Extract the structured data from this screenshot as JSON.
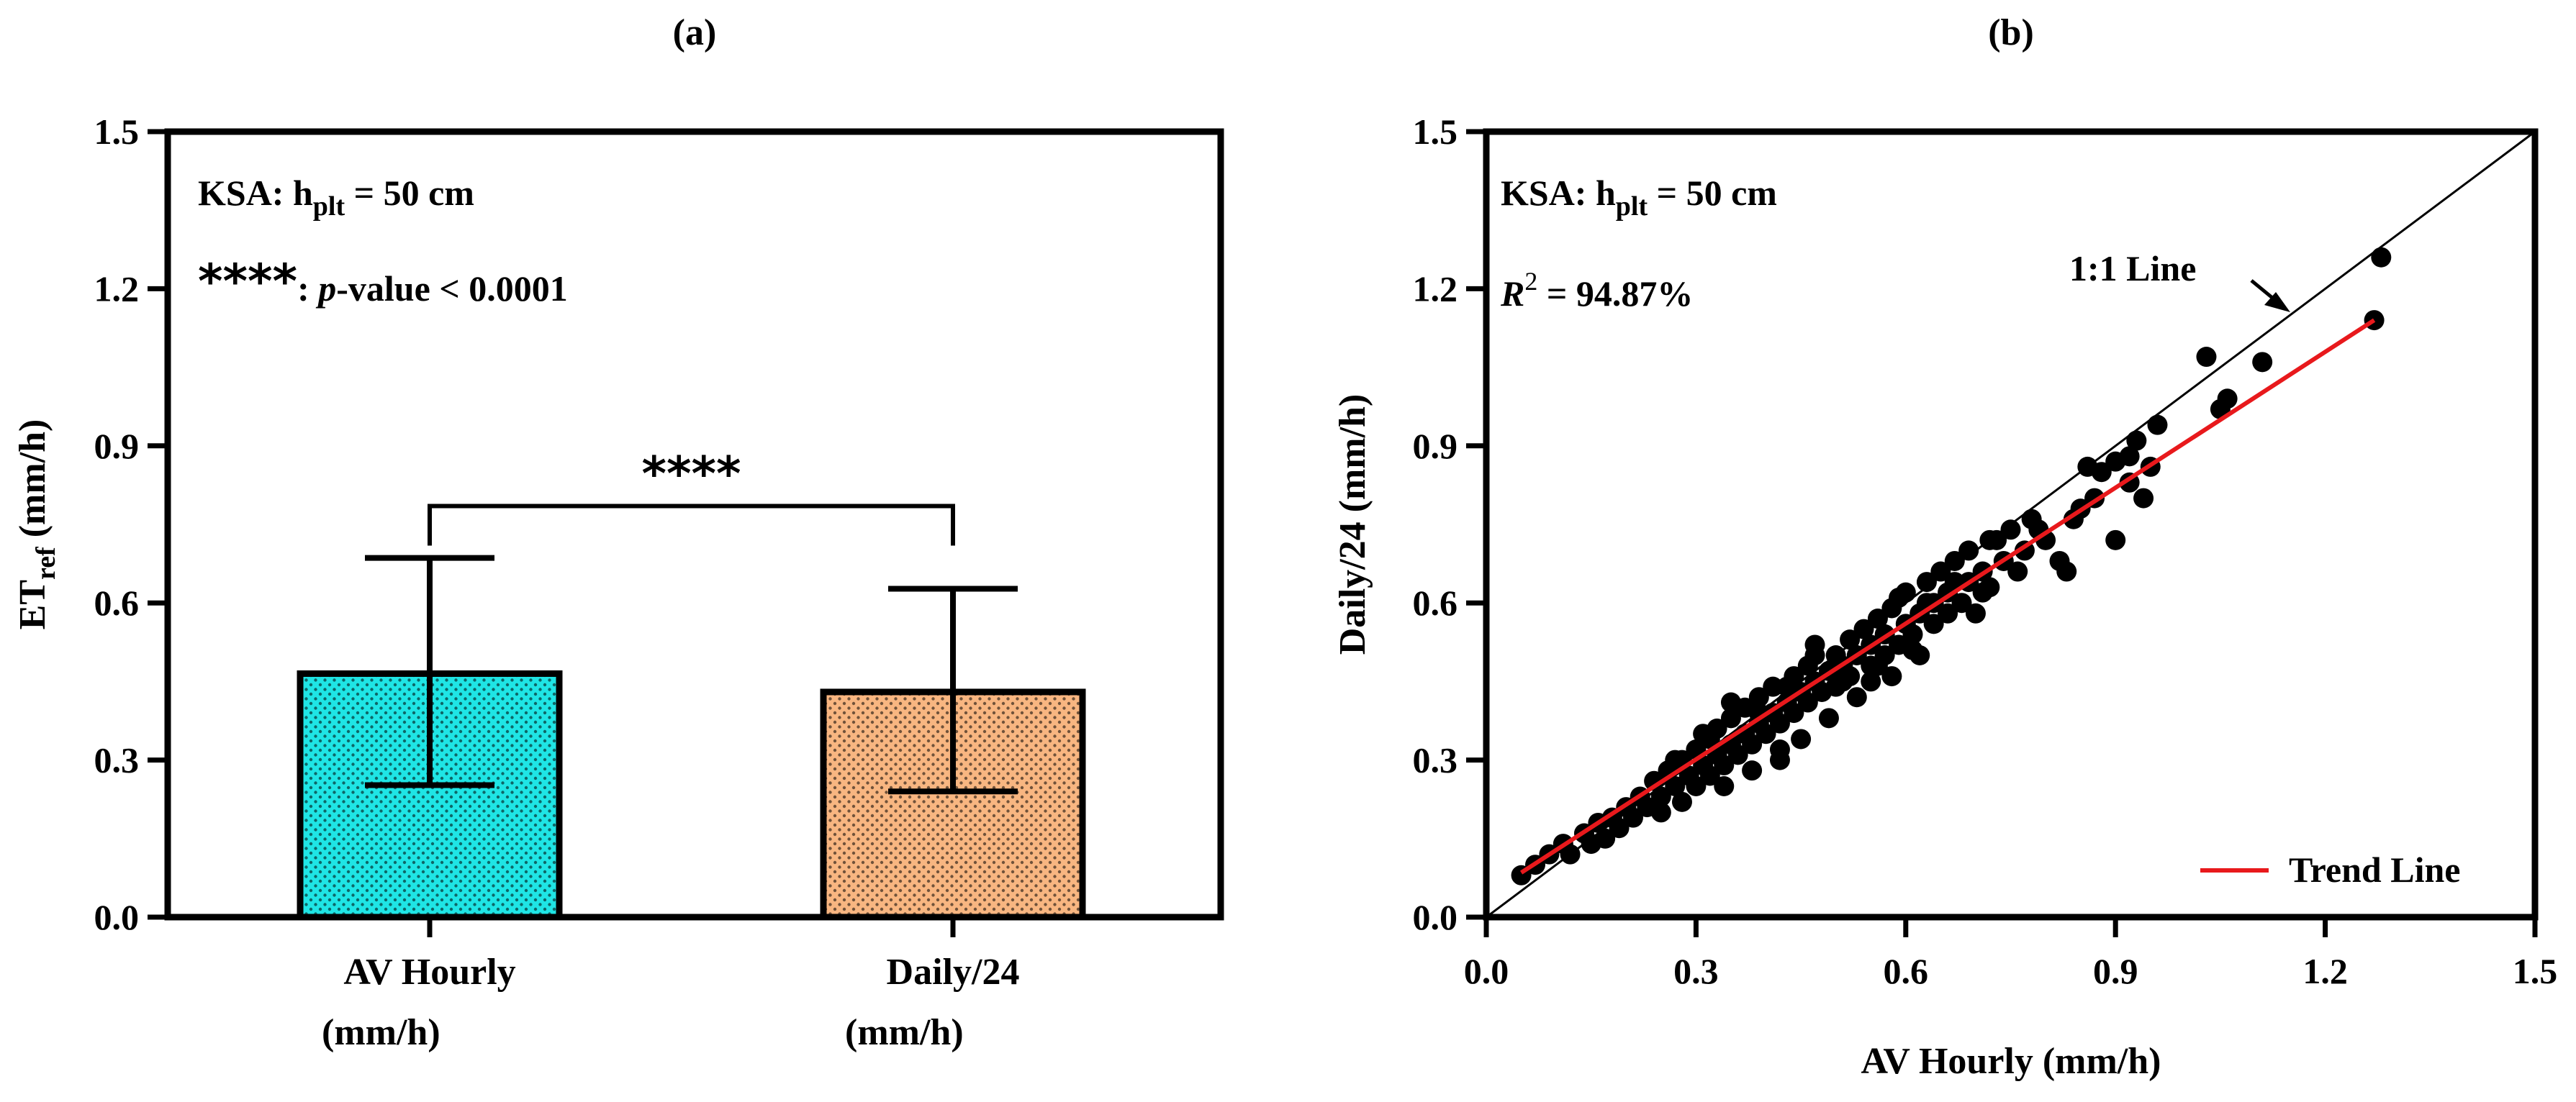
{
  "chart_data": [
    {
      "panel_label": "(a)",
      "type": "bar",
      "categories": [
        {
          "line1": "AV Hourly",
          "line2": "(mm/h)"
        },
        {
          "line1": "Daily/24",
          "line2": "(mm/h)"
        }
      ],
      "values": [
        0.465,
        0.43
      ],
      "error_lower": [
        0.252,
        0.24
      ],
      "error_upper": [
        0.686,
        0.627
      ],
      "bar_colors": [
        "#1FE5E5",
        "#F8B681"
      ],
      "ylabel": {
        "main": "ET",
        "sub": "ref",
        "unit": " (mm/h)"
      },
      "ylim": [
        0,
        1.5
      ],
      "yticks": [
        0.0,
        0.3,
        0.6,
        0.9,
        1.2,
        1.5
      ],
      "ytick_labels": [
        "0.0",
        "0.3",
        "0.6",
        "0.9",
        "1.2",
        "1.5"
      ],
      "annotation_site": {
        "prefix": "KSA: h",
        "sub": "plt",
        "suffix": " = 50 cm"
      },
      "annotation_pvalue": {
        "stars": "****",
        "colon": ": ",
        "p": "p",
        "rest": "-value < 0.0001"
      },
      "significance": {
        "between": [
          0,
          1
        ],
        "label": "****",
        "y": 0.785
      }
    },
    {
      "panel_label": "(b)",
      "type": "scatter",
      "xlabel": "AV Hourly (mm/h)",
      "ylabel": "Daily/24 (mm/h)",
      "xlim": [
        0,
        1.5
      ],
      "ylim": [
        0,
        1.5
      ],
      "xticks": [
        0.0,
        0.3,
        0.6,
        0.9,
        1.2,
        1.5
      ],
      "xtick_labels": [
        "0.0",
        "0.3",
        "0.6",
        "0.9",
        "1.2",
        "1.5"
      ],
      "yticks": [
        0.0,
        0.3,
        0.6,
        0.9,
        1.2,
        1.5
      ],
      "ytick_labels": [
        "0.0",
        "0.3",
        "0.6",
        "0.9",
        "1.2",
        "1.5"
      ],
      "annotation_site": {
        "prefix": "KSA: h",
        "sub": "plt",
        "suffix": " = 50 cm"
      },
      "annotation_r2": {
        "r": "R",
        "sup": "2",
        "rest": " = 94.87%"
      },
      "identity_line": {
        "label": "1:1 Line",
        "from": [
          0,
          0
        ],
        "to": [
          1.5,
          1.5
        ]
      },
      "trend_line": {
        "label": "Trend Line",
        "color": "#E8191C",
        "from": [
          0.05,
          0.085
        ],
        "to": [
          1.27,
          1.14
        ]
      },
      "legend_position": "bottom-right",
      "points": [
        [
          0.05,
          0.08
        ],
        [
          0.07,
          0.1
        ],
        [
          0.09,
          0.12
        ],
        [
          0.11,
          0.14
        ],
        [
          0.12,
          0.12
        ],
        [
          0.14,
          0.16
        ],
        [
          0.15,
          0.14
        ],
        [
          0.16,
          0.18
        ],
        [
          0.17,
          0.15
        ],
        [
          0.18,
          0.19
        ],
        [
          0.19,
          0.17
        ],
        [
          0.2,
          0.21
        ],
        [
          0.21,
          0.19
        ],
        [
          0.22,
          0.23
        ],
        [
          0.23,
          0.21
        ],
        [
          0.24,
          0.26
        ],
        [
          0.25,
          0.23
        ],
        [
          0.25,
          0.2
        ],
        [
          0.26,
          0.28
        ],
        [
          0.27,
          0.25
        ],
        [
          0.28,
          0.22
        ],
        [
          0.28,
          0.3
        ],
        [
          0.29,
          0.27
        ],
        [
          0.3,
          0.32
        ],
        [
          0.3,
          0.25
        ],
        [
          0.31,
          0.29
        ],
        [
          0.32,
          0.34
        ],
        [
          0.32,
          0.27
        ],
        [
          0.33,
          0.31
        ],
        [
          0.33,
          0.36
        ],
        [
          0.34,
          0.29
        ],
        [
          0.35,
          0.33
        ],
        [
          0.35,
          0.38
        ],
        [
          0.36,
          0.31
        ],
        [
          0.37,
          0.35
        ],
        [
          0.37,
          0.4
        ],
        [
          0.38,
          0.33
        ],
        [
          0.38,
          0.28
        ],
        [
          0.39,
          0.37
        ],
        [
          0.39,
          0.42
        ],
        [
          0.4,
          0.35
        ],
        [
          0.41,
          0.39
        ],
        [
          0.41,
          0.44
        ],
        [
          0.42,
          0.37
        ],
        [
          0.42,
          0.32
        ],
        [
          0.43,
          0.41
        ],
        [
          0.44,
          0.46
        ],
        [
          0.44,
          0.39
        ],
        [
          0.45,
          0.43
        ],
        [
          0.45,
          0.34
        ],
        [
          0.46,
          0.48
        ],
        [
          0.46,
          0.41
        ],
        [
          0.47,
          0.45
        ],
        [
          0.47,
          0.52
        ],
        [
          0.48,
          0.43
        ],
        [
          0.49,
          0.47
        ],
        [
          0.49,
          0.38
        ],
        [
          0.5,
          0.5
        ],
        [
          0.5,
          0.44
        ],
        [
          0.51,
          0.48
        ],
        [
          0.52,
          0.53
        ],
        [
          0.52,
          0.46
        ],
        [
          0.53,
          0.5
        ],
        [
          0.53,
          0.42
        ],
        [
          0.54,
          0.55
        ],
        [
          0.55,
          0.48
        ],
        [
          0.55,
          0.52
        ],
        [
          0.56,
          0.57
        ],
        [
          0.57,
          0.5
        ],
        [
          0.57,
          0.54
        ],
        [
          0.58,
          0.46
        ],
        [
          0.58,
          0.59
        ],
        [
          0.59,
          0.52
        ],
        [
          0.6,
          0.56
        ],
        [
          0.6,
          0.62
        ],
        [
          0.61,
          0.54
        ],
        [
          0.62,
          0.58
        ],
        [
          0.62,
          0.5
        ],
        [
          0.63,
          0.64
        ],
        [
          0.64,
          0.56
        ],
        [
          0.64,
          0.6
        ],
        [
          0.65,
          0.66
        ],
        [
          0.66,
          0.58
        ],
        [
          0.66,
          0.62
        ],
        [
          0.67,
          0.68
        ],
        [
          0.68,
          0.6
        ],
        [
          0.69,
          0.64
        ],
        [
          0.69,
          0.7
        ],
        [
          0.7,
          0.58
        ],
        [
          0.71,
          0.66
        ],
        [
          0.72,
          0.72
        ],
        [
          0.72,
          0.63
        ],
        [
          0.74,
          0.68
        ],
        [
          0.75,
          0.74
        ],
        [
          0.76,
          0.66
        ],
        [
          0.77,
          0.7
        ],
        [
          0.78,
          0.76
        ],
        [
          0.8,
          0.72
        ],
        [
          0.82,
          0.68
        ],
        [
          0.83,
          0.66
        ],
        [
          0.84,
          0.76
        ],
        [
          0.85,
          0.78
        ],
        [
          0.87,
          0.8
        ],
        [
          0.88,
          0.85
        ],
        [
          0.9,
          0.72
        ],
        [
          0.9,
          0.87
        ],
        [
          0.92,
          0.83
        ],
        [
          0.93,
          0.91
        ],
        [
          0.94,
          0.8
        ],
        [
          0.95,
          0.86
        ],
        [
          0.96,
          0.94
        ],
        [
          1.03,
          1.07
        ],
        [
          1.05,
          0.97
        ],
        [
          1.06,
          0.99
        ],
        [
          1.11,
          1.06
        ],
        [
          1.27,
          1.14
        ],
        [
          1.28,
          1.26
        ],
        [
          0.27,
          0.3
        ],
        [
          0.31,
          0.35
        ],
        [
          0.35,
          0.41
        ],
        [
          0.39,
          0.39
        ],
        [
          0.43,
          0.44
        ],
        [
          0.47,
          0.5
        ],
        [
          0.51,
          0.45
        ],
        [
          0.55,
          0.45
        ],
        [
          0.59,
          0.61
        ],
        [
          0.63,
          0.6
        ],
        [
          0.67,
          0.64
        ],
        [
          0.71,
          0.62
        ],
        [
          0.73,
          0.72
        ],
        [
          0.79,
          0.74
        ],
        [
          0.86,
          0.86
        ],
        [
          0.92,
          0.88
        ],
        [
          0.34,
          0.25
        ],
        [
          0.42,
          0.3
        ],
        [
          0.56,
          0.48
        ],
        [
          0.61,
          0.51
        ]
      ]
    }
  ]
}
